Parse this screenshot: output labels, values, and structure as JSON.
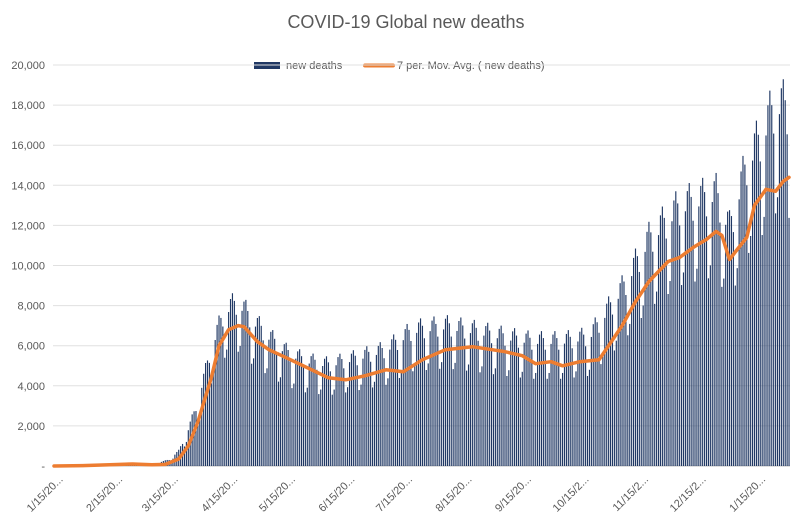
{
  "chart_data": {
    "type": "bar",
    "title": "COVID-19 Global new deaths",
    "xlabel": "",
    "ylabel": "",
    "ylim": [
      0,
      20000
    ],
    "y_ticks": [
      "-",
      "2,000",
      "4,000",
      "6,000",
      "8,000",
      "10,000",
      "12,000",
      "14,000",
      "16,000",
      "18,000",
      "20,000"
    ],
    "x_ticks": [
      "1/15/20...",
      "2/15/20...",
      "3/15/20...",
      "4/15/20...",
      "5/15/20...",
      "6/15/20...",
      "7/15/20...",
      "8/15/20...",
      "9/15/20...",
      "10/15/2...",
      "11/15/2...",
      "12/15/2...",
      "1/15/20..."
    ],
    "x_range": [
      "2020-01-10",
      "2021-01-27"
    ],
    "grid": true,
    "legend_placement": "top-center",
    "series": [
      {
        "name": "new deaths",
        "kind": "bar",
        "color": "#203864",
        "daily_level_points": [
          [
            "2020-01-10",
            0
          ],
          [
            "2020-01-22",
            17
          ],
          [
            "2020-02-01",
            45
          ],
          [
            "2020-02-10",
            90
          ],
          [
            "2020-02-20",
            110
          ],
          [
            "2020-03-01",
            65
          ],
          [
            "2020-03-10",
            300
          ],
          [
            "2020-03-15",
            700
          ],
          [
            "2020-03-20",
            1700
          ],
          [
            "2020-03-25",
            3000
          ],
          [
            "2020-04-01",
            5500
          ],
          [
            "2020-04-08",
            7200
          ],
          [
            "2020-04-15",
            7600
          ],
          [
            "2020-04-22",
            6800
          ],
          [
            "2020-05-01",
            6000
          ],
          [
            "2020-05-10",
            5300
          ],
          [
            "2020-05-20",
            4900
          ],
          [
            "2020-06-01",
            4700
          ],
          [
            "2020-06-15",
            5000
          ],
          [
            "2020-07-01",
            5400
          ],
          [
            "2020-07-15",
            6300
          ],
          [
            "2020-08-01",
            6500
          ],
          [
            "2020-08-15",
            6300
          ],
          [
            "2020-09-01",
            6000
          ],
          [
            "2020-09-15",
            5800
          ],
          [
            "2020-10-01",
            5800
          ],
          [
            "2020-10-15",
            6000
          ],
          [
            "2020-11-01",
            8200
          ],
          [
            "2020-11-15",
            10500
          ],
          [
            "2020-12-01",
            12000
          ],
          [
            "2020-12-10",
            12300
          ],
          [
            "2020-12-20",
            12600
          ],
          [
            "2020-12-27",
            11000
          ],
          [
            "2021-01-05",
            14000
          ],
          [
            "2021-01-15",
            15700
          ],
          [
            "2021-01-20",
            16800
          ],
          [
            "2021-01-27",
            16500
          ]
        ],
        "weekly_pattern": [
          1.05,
          1.13,
          1.16,
          1.1,
          1.0,
          0.75,
          0.8
        ]
      },
      {
        "name": "7 per. Mov. Avg. ( new deaths)",
        "kind": "line",
        "color": "#ED7D31",
        "points": [
          [
            "2020-01-10",
            0
          ],
          [
            "2020-01-25",
            20
          ],
          [
            "2020-02-10",
            70
          ],
          [
            "2020-02-20",
            100
          ],
          [
            "2020-03-01",
            65
          ],
          [
            "2020-03-08",
            80
          ],
          [
            "2020-03-15",
            350
          ],
          [
            "2020-03-20",
            1000
          ],
          [
            "2020-03-25",
            2200
          ],
          [
            "2020-04-01",
            4400
          ],
          [
            "2020-04-05",
            6000
          ],
          [
            "2020-04-10",
            6800
          ],
          [
            "2020-04-15",
            7000
          ],
          [
            "2020-04-18",
            6950
          ],
          [
            "2020-04-25",
            6200
          ],
          [
            "2020-05-01",
            5800
          ],
          [
            "2020-05-10",
            5400
          ],
          [
            "2020-05-20",
            4950
          ],
          [
            "2020-06-01",
            4400
          ],
          [
            "2020-06-10",
            4300
          ],
          [
            "2020-06-20",
            4500
          ],
          [
            "2020-07-01",
            4800
          ],
          [
            "2020-07-10",
            4700
          ],
          [
            "2020-07-20",
            5300
          ],
          [
            "2020-08-01",
            5800
          ],
          [
            "2020-08-15",
            5950
          ],
          [
            "2020-09-01",
            5700
          ],
          [
            "2020-09-10",
            5500
          ],
          [
            "2020-09-17",
            5100
          ],
          [
            "2020-09-25",
            5200
          ],
          [
            "2020-10-01",
            5000
          ],
          [
            "2020-10-10",
            5200
          ],
          [
            "2020-10-20",
            5300
          ],
          [
            "2020-10-25",
            6000
          ],
          [
            "2020-11-01",
            7000
          ],
          [
            "2020-11-08",
            8200
          ],
          [
            "2020-11-15",
            9200
          ],
          [
            "2020-11-25",
            10200
          ],
          [
            "2020-12-01",
            10400
          ],
          [
            "2020-12-08",
            10900
          ],
          [
            "2020-12-15",
            11300
          ],
          [
            "2020-12-20",
            11700
          ],
          [
            "2020-12-23",
            11500
          ],
          [
            "2020-12-27",
            10300
          ],
          [
            "2020-12-31",
            10800
          ],
          [
            "2021-01-05",
            11400
          ],
          [
            "2021-01-09",
            13000
          ],
          [
            "2021-01-15",
            13800
          ],
          [
            "2021-01-20",
            13700
          ],
          [
            "2021-01-24",
            14200
          ],
          [
            "2021-01-27",
            14400
          ]
        ]
      }
    ]
  }
}
